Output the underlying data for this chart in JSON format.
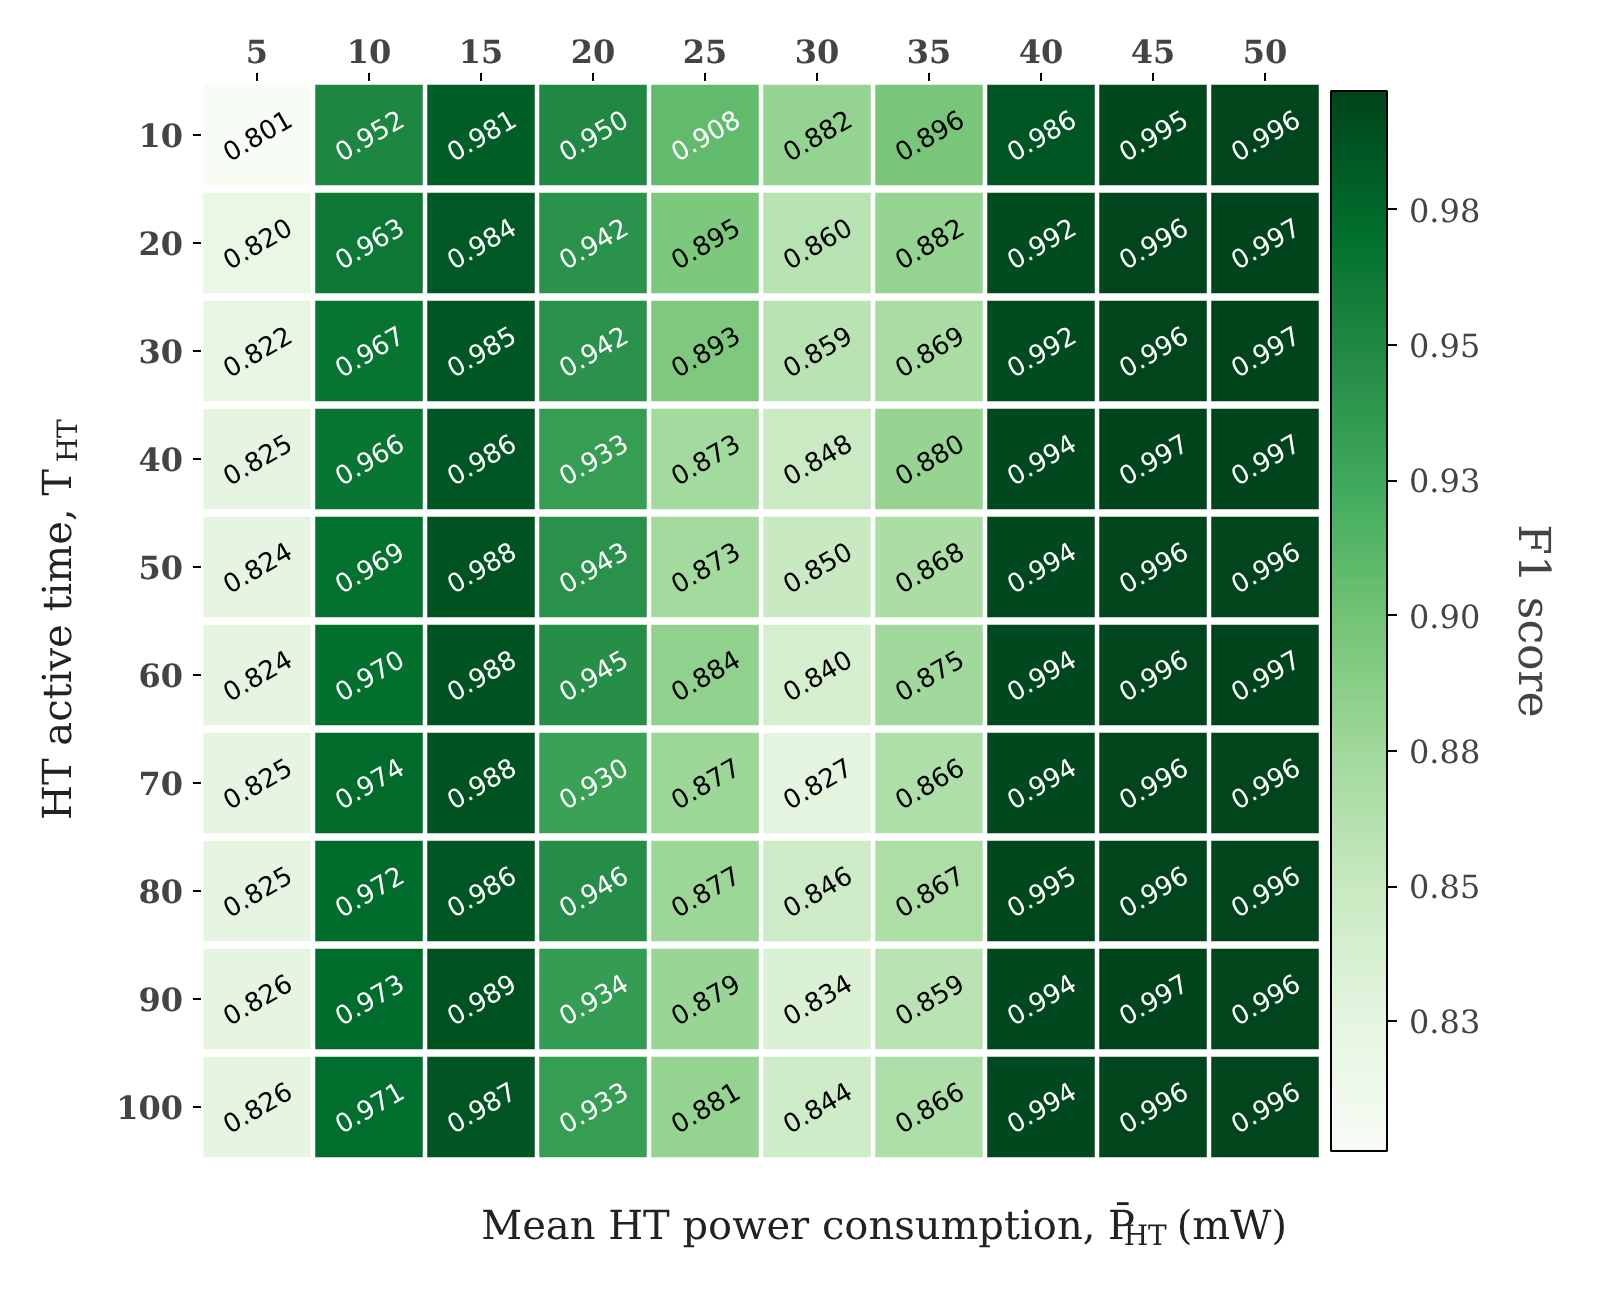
{
  "chart_data": {
    "type": "heatmap",
    "xlabel": "Mean HT power consumption, P̄$_{HT}$ (mW)",
    "ylabel": "HT active time, T$_{HT}$",
    "clabel": "F1 score",
    "categories": [
      "5",
      "10",
      "15",
      "20",
      "25",
      "30",
      "35",
      "40",
      "45",
      "50"
    ],
    "y_categories": [
      "10",
      "20",
      "30",
      "40",
      "50",
      "60",
      "70",
      "80",
      "90",
      "100"
    ],
    "cells": [
      [
        0.801,
        0.952,
        0.981,
        0.95,
        0.908,
        0.882,
        0.896,
        0.986,
        0.995,
        0.996
      ],
      [
        0.82,
        0.963,
        0.984,
        0.942,
        0.895,
        0.86,
        0.882,
        0.992,
        0.996,
        0.997
      ],
      [
        0.822,
        0.967,
        0.985,
        0.942,
        0.893,
        0.859,
        0.869,
        0.992,
        0.996,
        0.997
      ],
      [
        0.825,
        0.966,
        0.986,
        0.933,
        0.873,
        0.848,
        0.88,
        0.994,
        0.997,
        0.997
      ],
      [
        0.824,
        0.969,
        0.988,
        0.943,
        0.873,
        0.85,
        0.868,
        0.994,
        0.996,
        0.996
      ],
      [
        0.824,
        0.97,
        0.988,
        0.945,
        0.884,
        0.84,
        0.875,
        0.994,
        0.996,
        0.997
      ],
      [
        0.825,
        0.974,
        0.988,
        0.93,
        0.877,
        0.827,
        0.866,
        0.994,
        0.996,
        0.996
      ],
      [
        0.825,
        0.972,
        0.986,
        0.946,
        0.877,
        0.846,
        0.867,
        0.995,
        0.996,
        0.996
      ],
      [
        0.826,
        0.973,
        0.989,
        0.934,
        0.879,
        0.834,
        0.859,
        0.994,
        0.997,
        0.996
      ],
      [
        0.826,
        0.971,
        0.987,
        0.933,
        0.881,
        0.844,
        0.866,
        0.994,
        0.996,
        0.996
      ]
    ],
    "cell_labels": [
      [
        "0.801",
        "0.952",
        "0.981",
        "0.950",
        "0.908",
        "0.882",
        "0.896",
        "0.986",
        "0.995",
        "0.996"
      ],
      [
        "0.820",
        "0.963",
        "0.984",
        "0.942",
        "0.895",
        "0.860",
        "0.882",
        "0.992",
        "0.996",
        "0.997"
      ],
      [
        "0.822",
        "0.967",
        "0.985",
        "0.942",
        "0.893",
        "0.859",
        "0.869",
        "0.992",
        "0.996",
        "0.997"
      ],
      [
        "0.825",
        "0.966",
        "0.986",
        "0.933",
        "0.873",
        "0.848",
        "0.880",
        "0.994",
        "0.997",
        "0.997"
      ],
      [
        "0.824",
        "0.969",
        "0.988",
        "0.943",
        "0.873",
        "0.850",
        "0.868",
        "0.994",
        "0.996",
        "0.996"
      ],
      [
        "0.824",
        "0.970",
        "0.988",
        "0.945",
        "0.884",
        "0.840",
        "0.875",
        "0.994",
        "0.996",
        "0.997"
      ],
      [
        "0.825",
        "0.974",
        "0.988",
        "0.930",
        "0.877",
        "0.827",
        "0.866",
        "0.994",
        "0.996",
        "0.996"
      ],
      [
        "0.825",
        "0.972",
        "0.986",
        "0.946",
        "0.877",
        "0.846",
        "0.867",
        "0.995",
        "0.996",
        "0.996"
      ],
      [
        "0.826",
        "0.973",
        "0.989",
        "0.934",
        "0.879",
        "0.834",
        "0.859",
        "0.994",
        "0.997",
        "0.996"
      ],
      [
        "0.826",
        "0.971",
        "0.987",
        "0.933",
        "0.881",
        "0.844",
        "0.866",
        "0.994",
        "0.996",
        "0.996"
      ]
    ],
    "clim": [
      0.801,
      0.997
    ],
    "cticks": [
      {
        "value": 0.825,
        "label": "0.83"
      },
      {
        "value": 0.85,
        "label": "0.85"
      },
      {
        "value": 0.875,
        "label": "0.88"
      },
      {
        "value": 0.9,
        "label": "0.90"
      },
      {
        "value": 0.925,
        "label": "0.93"
      },
      {
        "value": 0.95,
        "label": "0.95"
      },
      {
        "value": 0.975,
        "label": "0.98"
      }
    ]
  }
}
